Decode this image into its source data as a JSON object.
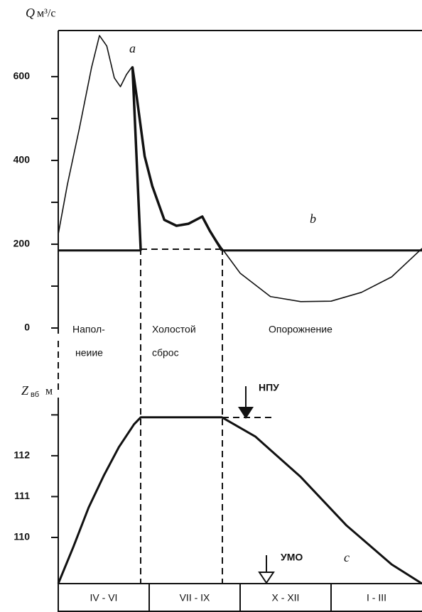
{
  "chart_data": [
    {
      "type": "line",
      "y_label": "Q",
      "y_unit": "м³/с",
      "xlim": [
        0,
        12
      ],
      "ylim": [
        0,
        710
      ],
      "yticks": [
        0,
        200,
        400,
        600
      ],
      "minor_yticks": [
        100,
        300,
        500
      ],
      "annotations": [
        "a",
        "b"
      ],
      "regions": [
        [
          "Напол-",
          "неиие"
        ],
        [
          "Холостой",
          "сброс"
        ],
        [
          "Опорожнение"
        ]
      ],
      "series": [
        {
          "name": "a",
          "color": "#111",
          "width": 1.6,
          "x": [
            0,
            0.3,
            0.7,
            1.1,
            1.36,
            1.6,
            1.85,
            2.05,
            2.25,
            2.42,
            2.6,
            2.85,
            3.1,
            3.5,
            3.9,
            4.3,
            4.75,
            5.0,
            5.4,
            6,
            7,
            8,
            9,
            10,
            11,
            12
          ],
          "values": [
            224,
            342,
            478,
            622,
            698,
            673,
            597,
            576,
            605,
            622,
            546,
            410,
            339,
            258,
            244,
            249,
            266,
            232,
            190,
            131,
            75,
            63,
            64,
            85,
            122,
            190
          ]
        },
        {
          "name": "b",
          "color": "#111",
          "width": 3,
          "x": [
            0,
            2.72,
            4,
            5.4,
            12
          ],
          "values": [
            185,
            185,
            null,
            185,
            185
          ]
        },
        {
          "color": "#111",
          "width": 3.5,
          "x": [
            2.72,
            2.45,
            2.6,
            2.85,
            3.1,
            3.5,
            3.9,
            4.3,
            4.75,
            5.0,
            5.4
          ],
          "values": [
            185,
            622,
            546,
            410,
            339,
            258,
            244,
            249,
            266,
            232,
            185
          ]
        }
      ]
    },
    {
      "type": "line",
      "y_label": "Z",
      "y_label_sub": "вб",
      "y_unit": "м",
      "xlim": [
        0,
        12
      ],
      "ylim": [
        108.87,
        113.51
      ],
      "yticks": [
        110,
        111,
        112
      ],
      "minor_yticks": [
        113
      ],
      "annotations": [
        "c",
        "НПУ",
        "УМО"
      ],
      "categories": [
        "IV - VI",
        "VII - IX",
        "X - XII",
        "I - III"
      ],
      "series": [
        {
          "name": "c",
          "color": "#111",
          "width": 3,
          "x": [
            0,
            0.5,
            1.0,
            1.5,
            2.0,
            2.5,
            2.72,
            5.4,
            6.5,
            8,
            9.5,
            11,
            12
          ],
          "values": [
            108.87,
            109.77,
            110.73,
            111.51,
            112.21,
            112.77,
            112.94,
            112.94,
            112.47,
            111.48,
            110.3,
            109.34,
            108.87
          ]
        }
      ]
    }
  ]
}
